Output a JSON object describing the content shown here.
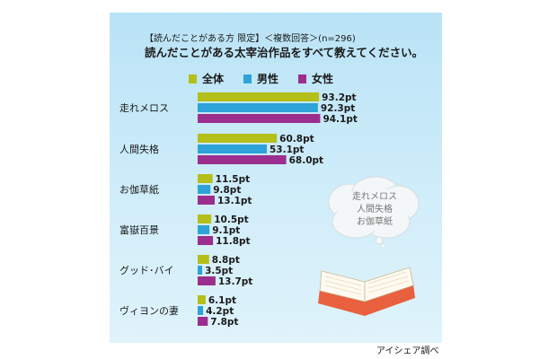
{
  "header": {
    "subtitle": "【読んだことがある方 限定】＜複数回答＞(n=296)",
    "title": "読んだことがある太宰治作品をすべて教えてください。"
  },
  "cloud": {
    "lines": [
      "走れメロス",
      "人間失格",
      "お伽草紙"
    ]
  },
  "credit": "アイシェア調べ",
  "colors": {
    "zentai": "#b5bf19",
    "dansei": "#2ea3d9",
    "josei": "#9c2e8e"
  },
  "chart_data": {
    "type": "bar",
    "orientation": "horizontal",
    "categories": [
      "走れメロス",
      "人間失格",
      "お伽草紙",
      "富嶽百景",
      "グッド･バイ",
      "ヴィヨンの妻"
    ],
    "series": [
      {
        "name": "全体",
        "values": [
          93.2,
          60.8,
          11.5,
          10.5,
          8.8,
          6.1
        ]
      },
      {
        "name": "男性",
        "values": [
          92.3,
          53.1,
          9.8,
          9.1,
          3.5,
          4.2
        ]
      },
      {
        "name": "女性",
        "values": [
          94.1,
          68.0,
          13.1,
          11.8,
          13.7,
          7.8
        ]
      }
    ],
    "value_suffix": "pt",
    "xlim": [
      0,
      100
    ],
    "legend_position": "top",
    "grid": false
  }
}
